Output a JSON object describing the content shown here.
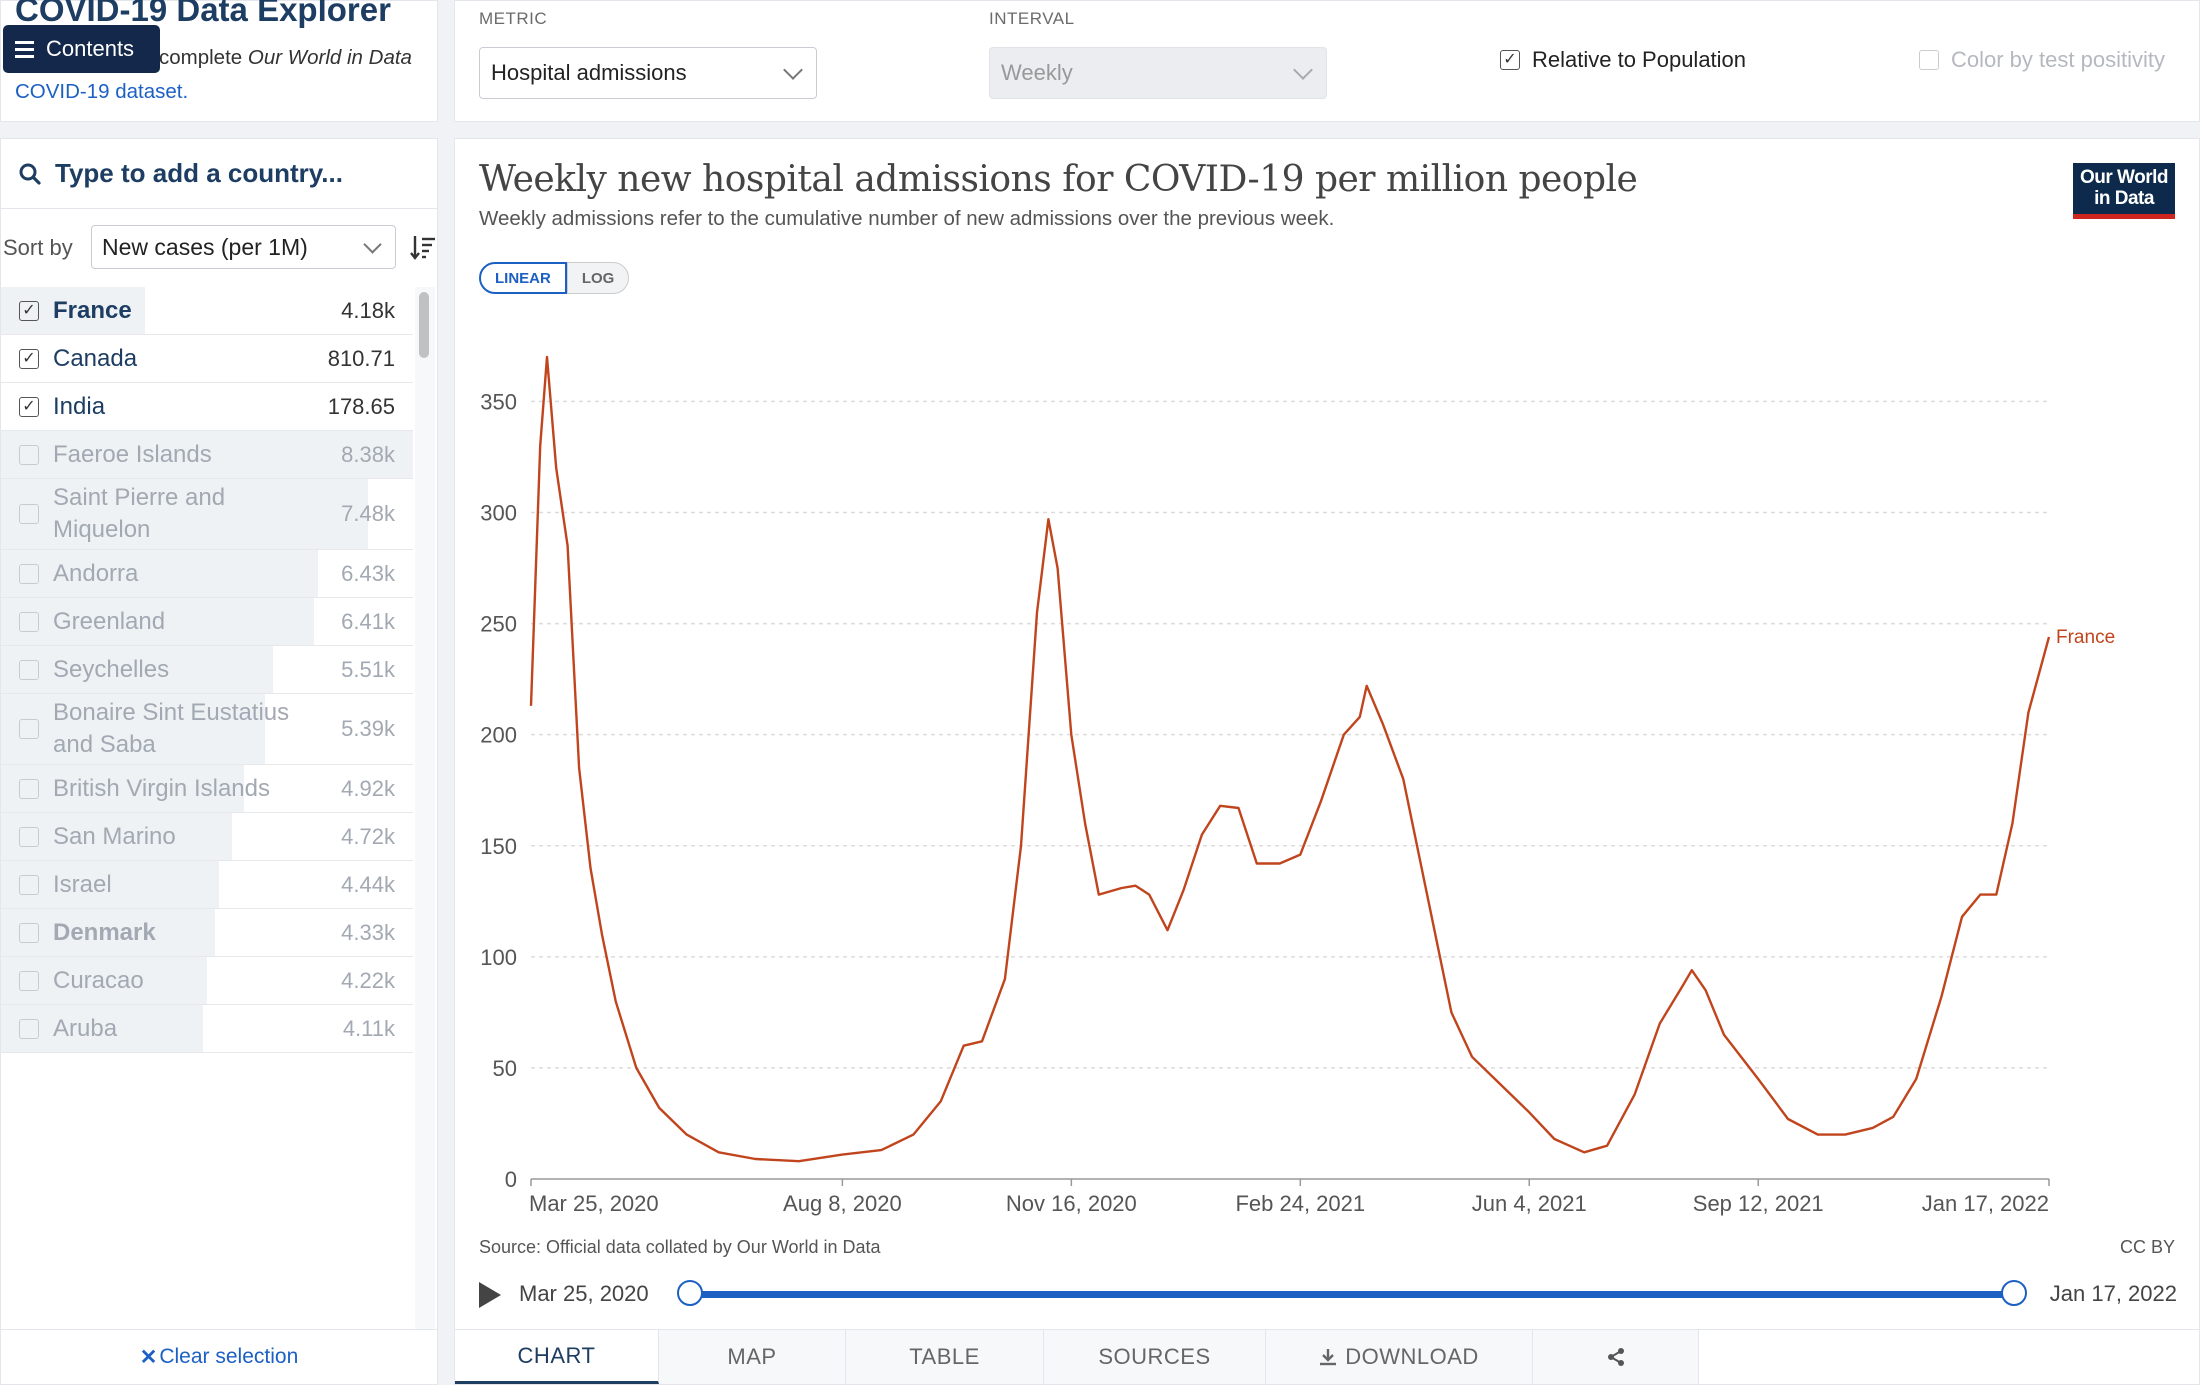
{
  "app": {
    "title": "COVID-19 Data Explorer",
    "subtitle_lead": "complete",
    "subtitle_em": "Our World in Data",
    "subtitle_link": "COVID-19 dataset.",
    "contents_label": "Contents"
  },
  "controls": {
    "metric_label": "METRIC",
    "metric_value": "Hospital admissions",
    "interval_label": "INTERVAL",
    "interval_value": "Weekly",
    "relative_label": "Relative to Population",
    "relative_checked": true,
    "positivity_label": "Color by test positivity",
    "positivity_checked": false
  },
  "sidebar": {
    "search_placeholder": "Type to add a country...",
    "sort_label": "Sort by",
    "sort_value": "New cases (per 1M)",
    "clear_label": "Clear selection",
    "countries": [
      {
        "name": "France",
        "value": "4.18k",
        "checked": true,
        "highlight": true,
        "fill": 0.35
      },
      {
        "name": "Canada",
        "value": "810.71",
        "checked": true,
        "highlight": false,
        "fill": 0.0
      },
      {
        "name": "India",
        "value": "178.65",
        "checked": true,
        "highlight": false,
        "fill": 0.0
      },
      {
        "name": "Faeroe Islands",
        "value": "8.38k",
        "checked": false,
        "highlight": false,
        "fill": 1.0
      },
      {
        "name": "Saint Pierre and Miquelon",
        "value": "7.48k",
        "checked": false,
        "highlight": false,
        "fill": 0.89
      },
      {
        "name": "Andorra",
        "value": "6.43k",
        "checked": false,
        "highlight": false,
        "fill": 0.77
      },
      {
        "name": "Greenland",
        "value": "6.41k",
        "checked": false,
        "highlight": false,
        "fill": 0.76
      },
      {
        "name": "Seychelles",
        "value": "5.51k",
        "checked": false,
        "highlight": false,
        "fill": 0.66
      },
      {
        "name": "Bonaire Sint Eustatius and Saba",
        "value": "5.39k",
        "checked": false,
        "highlight": false,
        "fill": 0.64
      },
      {
        "name": "British Virgin Islands",
        "value": "4.92k",
        "checked": false,
        "highlight": false,
        "fill": 0.59
      },
      {
        "name": "San Marino",
        "value": "4.72k",
        "checked": false,
        "highlight": false,
        "fill": 0.56
      },
      {
        "name": "Israel",
        "value": "4.44k",
        "checked": false,
        "highlight": false,
        "fill": 0.53
      },
      {
        "name": "Denmark",
        "value": "4.33k",
        "checked": false,
        "highlight": true,
        "fill": 0.52
      },
      {
        "name": "Curacao",
        "value": "4.22k",
        "checked": false,
        "highlight": false,
        "fill": 0.5
      },
      {
        "name": "Aruba",
        "value": "4.11k",
        "checked": false,
        "highlight": false,
        "fill": 0.49
      }
    ]
  },
  "chart_header": {
    "title": "Weekly new hospital admissions for COVID-19 per million people",
    "subtitle": "Weekly admissions refer to the cumulative number of new admissions over the previous week.",
    "logo_line1": "Our World",
    "logo_line2": "in Data",
    "scale_linear": "LINEAR",
    "scale_log": "LOG",
    "source": "Source: Official data collated by Our World in Data",
    "license": "CC BY"
  },
  "timeline": {
    "start": "Mar 25, 2020",
    "end": "Jan 17, 2022"
  },
  "tabs": [
    {
      "label": "CHART",
      "active": true
    },
    {
      "label": "MAP",
      "active": false
    },
    {
      "label": "TABLE",
      "active": false
    },
    {
      "label": "SOURCES",
      "active": false
    },
    {
      "label": "DOWNLOAD",
      "active": false
    },
    {
      "label": "",
      "active": false
    }
  ],
  "chart_data": {
    "type": "line",
    "title": "Weekly new hospital admissions for COVID-19 per million people",
    "ylim": [
      0,
      370
    ],
    "yticks": [
      0,
      50,
      100,
      150,
      200,
      250,
      300,
      350
    ],
    "x_start": "2020-03-25",
    "x_end": "2022-01-17",
    "xticks": [
      {
        "date": "2020-03-25",
        "label": "Mar 25, 2020"
      },
      {
        "date": "2020-08-08",
        "label": "Aug 8, 2020"
      },
      {
        "date": "2020-11-16",
        "label": "Nov 16, 2020"
      },
      {
        "date": "2021-02-24",
        "label": "Feb 24, 2021"
      },
      {
        "date": "2021-06-04",
        "label": "Jun 4, 2021"
      },
      {
        "date": "2021-09-12",
        "label": "Sep 12, 2021"
      },
      {
        "date": "2022-01-17",
        "label": "Jan 17, 2022"
      }
    ],
    "grid": true,
    "series": [
      {
        "name": "France",
        "color": "#c0451d",
        "points": [
          [
            "2020-03-25",
            213
          ],
          [
            "2020-03-29",
            330
          ],
          [
            "2020-04-01",
            370
          ],
          [
            "2020-04-05",
            320
          ],
          [
            "2020-04-10",
            285
          ],
          [
            "2020-04-15",
            185
          ],
          [
            "2020-04-20",
            140
          ],
          [
            "2020-04-25",
            110
          ],
          [
            "2020-05-01",
            80
          ],
          [
            "2020-05-10",
            50
          ],
          [
            "2020-05-20",
            32
          ],
          [
            "2020-06-01",
            20
          ],
          [
            "2020-06-15",
            12
          ],
          [
            "2020-07-01",
            9
          ],
          [
            "2020-07-20",
            8
          ],
          [
            "2020-08-08",
            11
          ],
          [
            "2020-08-25",
            13
          ],
          [
            "2020-09-08",
            20
          ],
          [
            "2020-09-20",
            35
          ],
          [
            "2020-09-30",
            60
          ],
          [
            "2020-10-08",
            62
          ],
          [
            "2020-10-18",
            90
          ],
          [
            "2020-10-25",
            150
          ],
          [
            "2020-11-01",
            255
          ],
          [
            "2020-11-06",
            297
          ],
          [
            "2020-11-10",
            275
          ],
          [
            "2020-11-16",
            200
          ],
          [
            "2020-11-22",
            160
          ],
          [
            "2020-11-28",
            128
          ],
          [
            "2020-12-08",
            131
          ],
          [
            "2020-12-14",
            132
          ],
          [
            "2020-12-20",
            128
          ],
          [
            "2020-12-28",
            112
          ],
          [
            "2021-01-04",
            130
          ],
          [
            "2021-01-12",
            155
          ],
          [
            "2021-01-20",
            168
          ],
          [
            "2021-01-28",
            167
          ],
          [
            "2021-02-05",
            142
          ],
          [
            "2021-02-15",
            142
          ],
          [
            "2021-02-24",
            146
          ],
          [
            "2021-03-05",
            170
          ],
          [
            "2021-03-15",
            200
          ],
          [
            "2021-03-22",
            208
          ],
          [
            "2021-03-25",
            222
          ],
          [
            "2021-04-01",
            205
          ],
          [
            "2021-04-10",
            180
          ],
          [
            "2021-04-20",
            130
          ],
          [
            "2021-05-01",
            75
          ],
          [
            "2021-05-10",
            55
          ],
          [
            "2021-05-20",
            45
          ],
          [
            "2021-06-04",
            30
          ],
          [
            "2021-06-15",
            18
          ],
          [
            "2021-06-28",
            12
          ],
          [
            "2021-07-08",
            15
          ],
          [
            "2021-07-20",
            38
          ],
          [
            "2021-07-31",
            70
          ],
          [
            "2021-08-10",
            87
          ],
          [
            "2021-08-14",
            94
          ],
          [
            "2021-08-20",
            85
          ],
          [
            "2021-08-28",
            65
          ],
          [
            "2021-09-12",
            45
          ],
          [
            "2021-09-25",
            27
          ],
          [
            "2021-10-08",
            20
          ],
          [
            "2021-10-20",
            20
          ],
          [
            "2021-11-01",
            23
          ],
          [
            "2021-11-10",
            28
          ],
          [
            "2021-11-20",
            45
          ],
          [
            "2021-12-01",
            82
          ],
          [
            "2021-12-10",
            118
          ],
          [
            "2021-12-18",
            128
          ],
          [
            "2021-12-25",
            128
          ],
          [
            "2022-01-01",
            160
          ],
          [
            "2022-01-08",
            210
          ],
          [
            "2022-01-17",
            244
          ]
        ]
      }
    ]
  }
}
